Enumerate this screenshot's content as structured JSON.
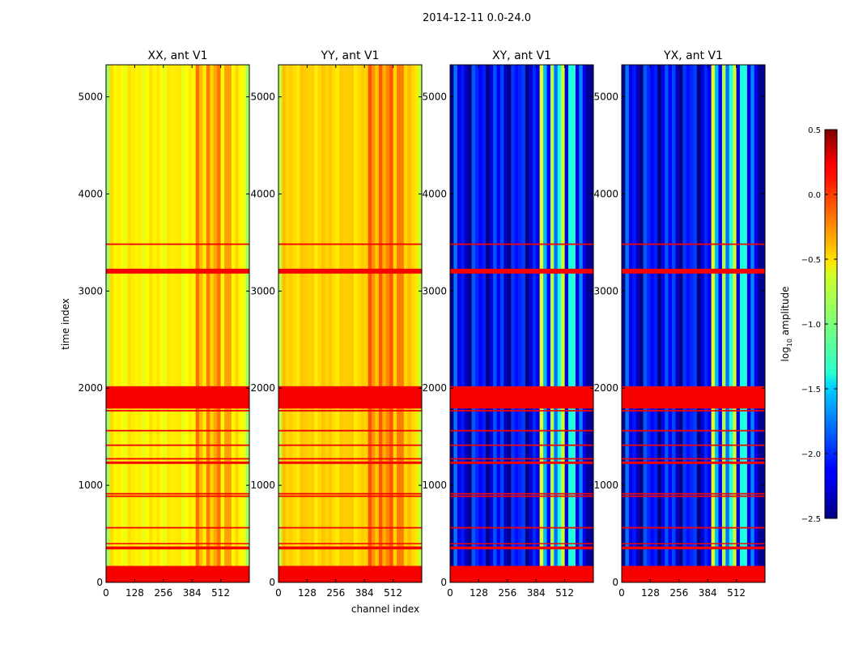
{
  "figure": {
    "suptitle": "2014-12-11 0.0-24.0"
  },
  "chart_data": {
    "type": "heatmap",
    "title": "2014-12-11 0.0-24.0",
    "xlabel": "channel index",
    "ylabel": "time index",
    "xlim": [
      0,
      640
    ],
    "ylim": [
      0,
      5330
    ],
    "xticks": [
      0,
      128,
      256,
      384,
      512
    ],
    "yticks": [
      0,
      1000,
      2000,
      3000,
      4000,
      5000
    ],
    "flagged_rows": [
      [
        0,
        170
      ],
      [
        340,
        370
      ],
      [
        395,
        405
      ],
      [
        555,
        570
      ],
      [
        880,
        895
      ],
      [
        905,
        920
      ],
      [
        1220,
        1245
      ],
      [
        1265,
        1280
      ],
      [
        1405,
        1420
      ],
      [
        1555,
        1570
      ],
      [
        1760,
        1775
      ],
      [
        1790,
        2020
      ],
      [
        3180,
        3230
      ],
      [
        3475,
        3490
      ]
    ],
    "colorbar": {
      "label": "log10 amplitude",
      "label_main": "log",
      "label_sub": "10",
      "label_rest": " amplitude",
      "vmin": -2.5,
      "vmax": 0.5,
      "ticks": [
        -2.5,
        -2.0,
        -1.5,
        -1.0,
        -0.5,
        0.0,
        0.5
      ],
      "tick_labels": [
        "−2.5",
        "−2.0",
        "−1.5",
        "−1.0",
        "−0.5",
        "0.0",
        "0.5"
      ]
    },
    "panels": [
      {
        "title": "XX, ant V1",
        "base_level": -0.6,
        "stripe_amp": 0.1,
        "feature_amp": 0.35,
        "show_ylabel": true,
        "show_xlabel": false
      },
      {
        "title": "YY, ant V1",
        "base_level": -0.5,
        "stripe_amp": 0.08,
        "feature_amp": 0.35,
        "show_ylabel": false,
        "show_xlabel": true
      },
      {
        "title": "XY, ant V1",
        "base_level": -2.15,
        "stripe_amp": 0.45,
        "feature_amp": 1.2,
        "show_ylabel": false,
        "show_xlabel": false
      },
      {
        "title": "YX, ant V1",
        "base_level": -2.15,
        "stripe_amp": 0.45,
        "feature_amp": 1.2,
        "show_ylabel": false,
        "show_xlabel": false
      }
    ]
  }
}
